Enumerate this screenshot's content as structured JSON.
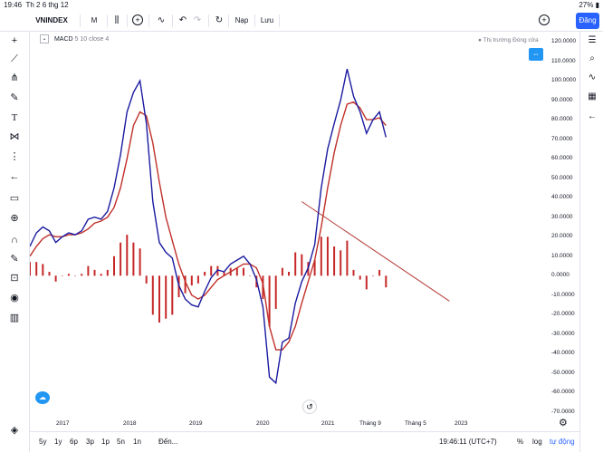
{
  "status": {
    "time": "19:46",
    "date": "Th 2 6 thg 12",
    "battery": "27%"
  },
  "toolbar": {
    "symbol": "VNINDEX",
    "interval": "M",
    "undo_icon": "undo-icon",
    "redo_icon": "redo-icon",
    "load_label": "Nạp",
    "save_label": "Lưu",
    "publish_label": "Đăng"
  },
  "legend": {
    "indicator": "MACD",
    "params": "5 10 close 4"
  },
  "market_status": "Thị trường Đóng cửa",
  "y_axis": [
    "120.0000",
    "110.0000",
    "100.0000",
    "90.0000",
    "80.0000",
    "70.0000",
    "60.0000",
    "50.0000",
    "40.0000",
    "30.0000",
    "20.0000",
    "10.0000",
    "0.0000",
    "-10.0000",
    "-20.0000",
    "-30.0000",
    "-40.0000",
    "-50.0000",
    "-60.0000",
    "-70.0000"
  ],
  "x_axis": [
    "2017",
    "2018",
    "2019",
    "2020",
    "2021",
    "Tháng 9",
    "Tháng 5",
    "2023"
  ],
  "bottom": {
    "ranges": [
      "5y",
      "1y",
      "6p",
      "3p",
      "1p",
      "5n",
      "1n"
    ],
    "goto": "Đến...",
    "clock": "19:46:11 (UTC+7)",
    "percent": "%",
    "log": "log",
    "auto": "tự động"
  },
  "colors": {
    "macd": "#1a1aa0",
    "signal": "#c0302a",
    "histogram": "#c62828",
    "trendline": "#b53a35",
    "accent": "#2962ff"
  },
  "chart_data": {
    "type": "line",
    "ylim": [
      -70,
      120
    ],
    "series": [
      {
        "name": "MACD",
        "values": [
          15,
          22,
          25,
          23,
          17,
          20,
          22,
          21,
          23,
          29,
          30,
          29,
          33,
          45,
          62,
          84,
          94,
          100,
          78,
          38,
          17,
          12,
          9,
          -5,
          -12,
          -15,
          -16,
          -8,
          -1,
          3,
          2,
          6,
          8,
          10,
          6,
          -2,
          -16,
          -52,
          -55,
          -34,
          -32,
          -14,
          -3,
          4,
          16,
          45,
          65,
          78,
          90,
          106,
          92,
          84,
          73,
          80,
          84,
          71
        ],
        "x": [
          0,
          0.25,
          0.5,
          0.75,
          1,
          1.25,
          1.5,
          1.75,
          2,
          2.25,
          2.5,
          2.75,
          3,
          3.25,
          3.5,
          3.75,
          4,
          4.25,
          4.5,
          4.75,
          5,
          5.25,
          5.5,
          5.75,
          6,
          6.25,
          6.5,
          6.75,
          7,
          7.25,
          7.5,
          7.75,
          8,
          8.25,
          8.5,
          8.75,
          9,
          9.25,
          9.5,
          9.75,
          10,
          10.25,
          10.5,
          10.75,
          11,
          11.25,
          11.5,
          11.75,
          12,
          12.25,
          12.5,
          12.75,
          13,
          13.25,
          13.5,
          13.75
        ]
      },
      {
        "name": "Signal",
        "values": [
          10,
          15,
          19,
          21,
          20,
          20,
          21,
          21,
          22,
          24,
          27,
          28,
          30,
          35,
          45,
          60,
          77,
          84,
          82,
          68,
          48,
          30,
          18,
          6,
          -3,
          -10,
          -12,
          -10,
          -6,
          -2,
          0,
          2,
          4,
          6,
          6,
          4,
          -4,
          -26,
          -38,
          -38,
          -34,
          -26,
          -14,
          -3,
          8,
          25,
          45,
          63,
          77,
          88,
          89,
          86,
          80,
          80,
          81,
          77
        ],
        "x": [
          0,
          0.25,
          0.5,
          0.75,
          1,
          1.25,
          1.5,
          1.75,
          2,
          2.25,
          2.5,
          2.75,
          3,
          3.25,
          3.5,
          3.75,
          4,
          4.25,
          4.5,
          4.75,
          5,
          5.25,
          5.5,
          5.75,
          6,
          6.25,
          6.5,
          6.75,
          7,
          7.25,
          7.5,
          7.75,
          8,
          8.25,
          8.5,
          8.75,
          9,
          9.25,
          9.5,
          9.75,
          10,
          10.25,
          10.5,
          10.75,
          11,
          11.25,
          11.5,
          11.75,
          12,
          12.25,
          12.5,
          12.75,
          13,
          13.25,
          13.5,
          13.75
        ]
      },
      {
        "name": "Histogram",
        "type": "bar",
        "values": [
          7,
          7,
          6,
          2,
          -3,
          0,
          1,
          0,
          1,
          5,
          3,
          1,
          3,
          10,
          17,
          21,
          17,
          14,
          -4,
          -20,
          -24,
          -22,
          -20,
          -11,
          -9,
          -5,
          -4,
          2,
          5,
          5,
          2,
          4,
          4,
          4,
          0,
          -6,
          -12,
          -26,
          -17,
          4,
          2,
          12,
          11,
          7,
          8,
          20,
          20,
          15,
          13,
          18,
          3,
          -2,
          -7,
          0,
          3,
          -6
        ]
      }
    ],
    "trendline": {
      "x": [
        10.5,
        16.2
      ],
      "y": [
        38,
        -13
      ]
    }
  }
}
